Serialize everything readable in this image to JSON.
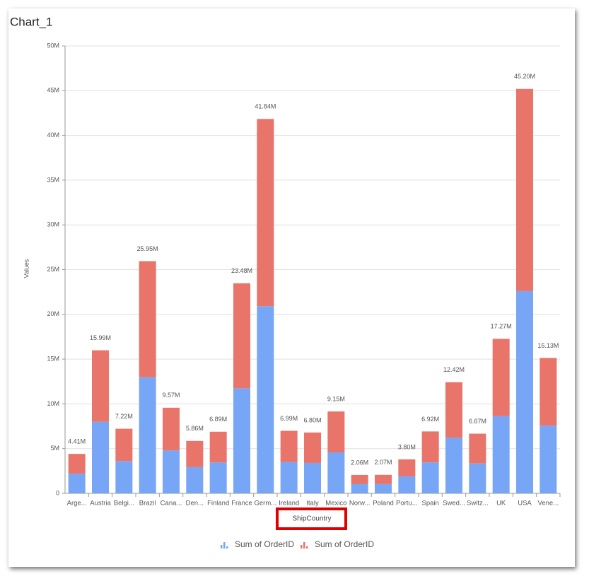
{
  "chart_data": {
    "type": "bar",
    "stacked": true,
    "title": "Chart_1",
    "x_label": "ShipCountry",
    "y_label": "Values",
    "categories": [
      "Arge...",
      "Austria",
      "Belgi...",
      "Brazil",
      "Cana...",
      "Den...",
      "Finland",
      "France",
      "Germ...",
      "Ireland",
      "Italy",
      "Mexico",
      "Norw...",
      "Poland",
      "Portu...",
      "Spain",
      "Swed...",
      "Switz...",
      "UK",
      "USA",
      "Vene..."
    ],
    "series": [
      {
        "name": "Sum of OrderID",
        "color": "#77a6f7",
        "values": [
          2200000,
          8000000,
          3610000,
          12980000,
          4790000,
          2930000,
          3450000,
          11740000,
          20920000,
          3500000,
          3400000,
          4580000,
          1030000,
          1040000,
          1900000,
          3460000,
          6210000,
          3340000,
          8640000,
          22600000,
          7570000
        ]
      },
      {
        "name": "Sum of OrderID",
        "color": "#e8746a",
        "values": [
          2210000,
          7990000,
          3610000,
          12970000,
          4780000,
          2930000,
          3440000,
          11740000,
          20920000,
          3490000,
          3400000,
          4570000,
          1030000,
          1030000,
          1900000,
          3460000,
          6210000,
          3330000,
          8630000,
          22600000,
          7560000
        ]
      }
    ],
    "stack_labels": [
      "4.41M",
      "15.99M",
      "7.22M",
      "25.95M",
      "9.57M",
      "5.86M",
      "6.89M",
      "23.48M",
      "41.84M",
      "6.99M",
      "6.80M",
      "9.15M",
      "2.06M",
      "2.07M",
      "3.80M",
      "6.92M",
      "12.42M",
      "6.67M",
      "17.27M",
      "45.20M",
      "15.13M"
    ],
    "ylim": [
      0,
      50000000
    ],
    "yticks": [
      {
        "value": 0,
        "label": "0"
      },
      {
        "value": 5000000,
        "label": "5M"
      },
      {
        "value": 10000000,
        "label": "10M"
      },
      {
        "value": 15000000,
        "label": "15M"
      },
      {
        "value": 20000000,
        "label": "20M"
      },
      {
        "value": 25000000,
        "label": "25M"
      },
      {
        "value": 30000000,
        "label": "30M"
      },
      {
        "value": 35000000,
        "label": "35M"
      },
      {
        "value": 40000000,
        "label": "40M"
      },
      {
        "value": 45000000,
        "label": "45M"
      },
      {
        "value": 50000000,
        "label": "50M"
      }
    ],
    "grid": true
  }
}
